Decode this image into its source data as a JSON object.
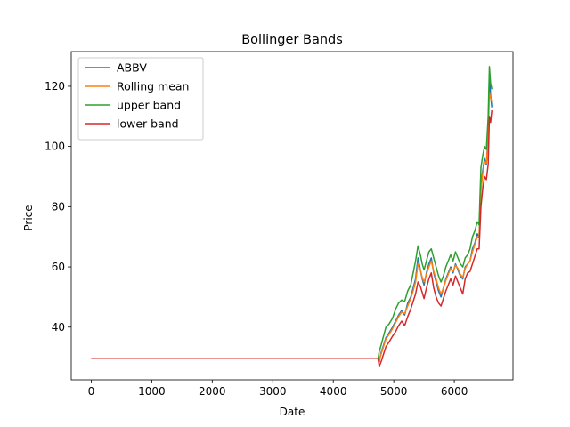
{
  "chart_data": {
    "type": "line",
    "title": "Bollinger Bands",
    "xlabel": "Date",
    "ylabel": "Price",
    "xlim": [
      -330,
      6970
    ],
    "ylim": [
      22.5,
      131.5
    ],
    "xticks": [
      0,
      1000,
      2000,
      3000,
      4000,
      5000,
      6000
    ],
    "yticks": [
      40,
      60,
      80,
      100,
      120
    ],
    "grid": false,
    "legend_position": "top-left",
    "series": [
      {
        "name": "ABBV",
        "color": "#1f77b4",
        "x": [
          0,
          4740,
          4760,
          4790,
          4830,
          4870,
          4920,
          4980,
          5030,
          5080,
          5130,
          5180,
          5230,
          5280,
          5320,
          5360,
          5400,
          5440,
          5470,
          5500,
          5540,
          5580,
          5620,
          5660,
          5700,
          5740,
          5780,
          5820,
          5860,
          5900,
          5940,
          5980,
          6020,
          6060,
          6100,
          6140,
          6180,
          6220,
          6260,
          6300,
          6340,
          6380,
          6410,
          6440,
          6470,
          6500,
          6530,
          6560,
          6580,
          6600,
          6620
        ],
        "y": [
          29.5,
          29.5,
          28.5,
          31.5,
          34,
          36.5,
          38,
          40,
          42,
          44,
          45.5,
          44,
          48,
          50,
          53,
          56,
          63,
          59,
          56,
          54,
          58,
          61,
          63,
          58,
          55,
          52,
          50,
          53,
          56,
          58,
          60,
          58,
          61,
          59,
          57,
          56,
          60,
          61,
          62,
          66,
          68,
          71,
          70,
          87,
          92,
          96,
          94,
          104,
          124,
          117,
          113
        ]
      },
      {
        "name": "Rolling mean",
        "color": "#ff7f0e",
        "x": [
          0,
          4740,
          4760,
          4790,
          4830,
          4870,
          4920,
          4980,
          5030,
          5080,
          5130,
          5180,
          5230,
          5280,
          5320,
          5360,
          5400,
          5440,
          5470,
          5500,
          5540,
          5580,
          5620,
          5660,
          5700,
          5740,
          5780,
          5820,
          5860,
          5900,
          5940,
          5980,
          6020,
          6060,
          6100,
          6140,
          6180,
          6220,
          6260,
          6300,
          6340,
          6380,
          6410,
          6440,
          6470,
          6500,
          6530,
          6560,
          6580,
          6600,
          6620
        ],
        "y": [
          29.5,
          29.5,
          29,
          31,
          33.5,
          36,
          37.5,
          39.5,
          41.5,
          43.5,
          45,
          44.5,
          47,
          49.5,
          52,
          55,
          61,
          59,
          56.5,
          55,
          57.5,
          60,
          62,
          58.5,
          56,
          53,
          51,
          53,
          55.5,
          57.5,
          59.5,
          58.5,
          60.5,
          59.5,
          57.5,
          56.5,
          59.5,
          61,
          62,
          65,
          67.5,
          70,
          70,
          85,
          91,
          95,
          94.5,
          102,
          118,
          116,
          115
        ]
      },
      {
        "name": "upper band",
        "color": "#2ca02c",
        "x": [
          0,
          4740,
          4760,
          4790,
          4830,
          4870,
          4920,
          4980,
          5030,
          5080,
          5130,
          5180,
          5230,
          5280,
          5320,
          5360,
          5400,
          5440,
          5470,
          5500,
          5540,
          5580,
          5620,
          5660,
          5700,
          5740,
          5780,
          5820,
          5860,
          5900,
          5940,
          5980,
          6020,
          6060,
          6100,
          6140,
          6180,
          6220,
          6260,
          6300,
          6340,
          6380,
          6410,
          6440,
          6470,
          6500,
          6530,
          6560,
          6580,
          6600,
          6620
        ],
        "y": [
          29.5,
          29.5,
          32,
          34,
          37,
          40,
          41,
          43,
          46,
          48,
          49,
          48.5,
          52,
          54,
          58,
          62,
          67,
          64,
          61,
          59,
          62,
          65,
          66,
          63,
          60,
          57,
          55,
          57,
          60,
          62,
          64,
          62,
          65,
          63,
          61,
          60,
          63,
          64,
          66,
          70,
          72,
          75,
          74,
          93,
          97,
          100,
          99,
          110,
          126.5,
          121,
          119
        ]
      },
      {
        "name": "lower band",
        "color": "#d62728",
        "x": [
          0,
          4740,
          4760,
          4790,
          4830,
          4870,
          4920,
          4980,
          5030,
          5080,
          5130,
          5180,
          5230,
          5280,
          5320,
          5360,
          5400,
          5440,
          5470,
          5500,
          5540,
          5580,
          5620,
          5660,
          5700,
          5740,
          5780,
          5820,
          5860,
          5900,
          5940,
          5980,
          6020,
          6060,
          6100,
          6140,
          6180,
          6220,
          6260,
          6300,
          6340,
          6380,
          6410,
          6440,
          6470,
          6500,
          6530,
          6560,
          6580,
          6600,
          6620
        ],
        "y": [
          29.5,
          29.5,
          27,
          28.5,
          31,
          33.5,
          35,
          37,
          38.5,
          40.5,
          42,
          40.5,
          43.5,
          46,
          48.5,
          51,
          55,
          53.5,
          51.5,
          49.5,
          53,
          56,
          58,
          53,
          50,
          48,
          47,
          49.5,
          52,
          54,
          56,
          54,
          57,
          55,
          53,
          51,
          56,
          58,
          58.5,
          61,
          63.5,
          66,
          66,
          80,
          86,
          90,
          89,
          94,
          110,
          108,
          112
        ]
      }
    ]
  }
}
